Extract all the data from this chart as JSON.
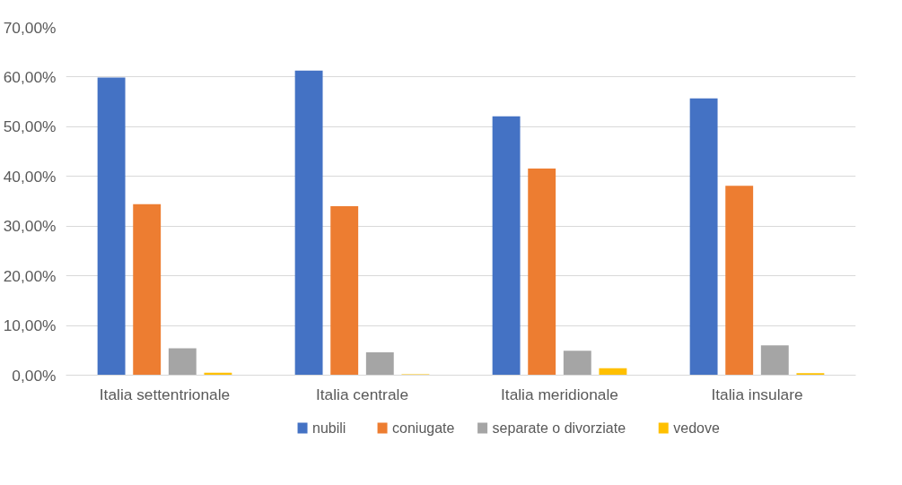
{
  "chart_data": {
    "type": "bar",
    "categories": [
      "Italia settentrionale",
      "Italia centrale",
      "Italia meridionale",
      "Italia insulare"
    ],
    "series": [
      {
        "name": "nubili",
        "color": "#4472c4",
        "values": [
          59.9,
          61.3,
          52.1,
          55.7
        ]
      },
      {
        "name": "coniugate",
        "color": "#ed7d31",
        "values": [
          34.4,
          34.0,
          41.6,
          38.1
        ]
      },
      {
        "name": "separate o divorziate",
        "color": "#a5a5a5",
        "values": [
          5.4,
          4.6,
          4.9,
          6.0
        ]
      },
      {
        "name": "vedove",
        "color": "#ffc000",
        "values": [
          0.5,
          0.2,
          1.4,
          0.4
        ]
      }
    ],
    "ylim": [
      0,
      70
    ],
    "yticks": [
      {
        "value": 0,
        "label": "0,00%"
      },
      {
        "value": 10,
        "label": "10,00%"
      },
      {
        "value": 20,
        "label": "20,00%"
      },
      {
        "value": 30,
        "label": "30,00%"
      },
      {
        "value": 40,
        "label": "40,00%"
      },
      {
        "value": 50,
        "label": "50,00%"
      },
      {
        "value": 60,
        "label": "60,00%"
      },
      {
        "value": 70,
        "label": "70,00%"
      }
    ],
    "grid": "y",
    "legend": "bottom"
  }
}
